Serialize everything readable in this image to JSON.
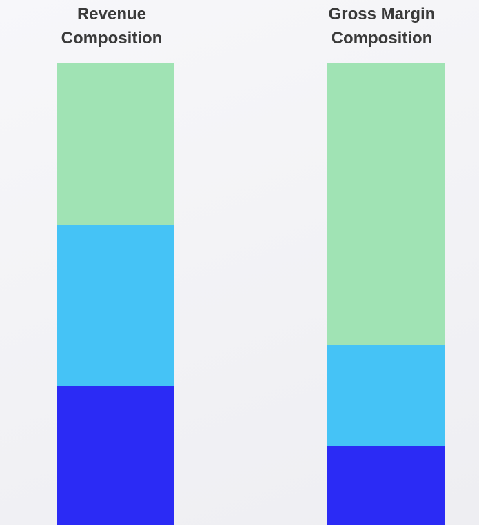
{
  "colors": {
    "segment_bottom": "#2b2bf5",
    "segment_middle": "#45c3f6",
    "segment_top": "#a0e3b4",
    "title_text": "#3a3a3a"
  },
  "chart_data": [
    {
      "type": "bar",
      "stacked": true,
      "title": "Revenue Composition",
      "title_lines": [
        "Revenue",
        "Composition"
      ],
      "categories": [
        "Revenue Composition"
      ],
      "series": [
        {
          "values": [
            0.3
          ],
          "color": "#2b2bf5"
        },
        {
          "values": [
            0.35
          ],
          "color": "#45c3f6"
        },
        {
          "values": [
            0.35
          ],
          "color": "#a0e3b4"
        }
      ],
      "xlabel": "",
      "ylabel": "",
      "legend": "none",
      "grid": false
    },
    {
      "type": "bar",
      "stacked": true,
      "title": "Gross Margin Composition",
      "title_lines": [
        "Gross Margin",
        "Composition"
      ],
      "categories": [
        "Gross Margin Composition"
      ],
      "series": [
        {
          "values": [
            0.17
          ],
          "color": "#2b2bf5"
        },
        {
          "values": [
            0.22
          ],
          "color": "#45c3f6"
        },
        {
          "values": [
            0.61
          ],
          "color": "#a0e3b4"
        }
      ],
      "xlabel": "",
      "ylabel": "",
      "legend": "none",
      "grid": false
    }
  ]
}
